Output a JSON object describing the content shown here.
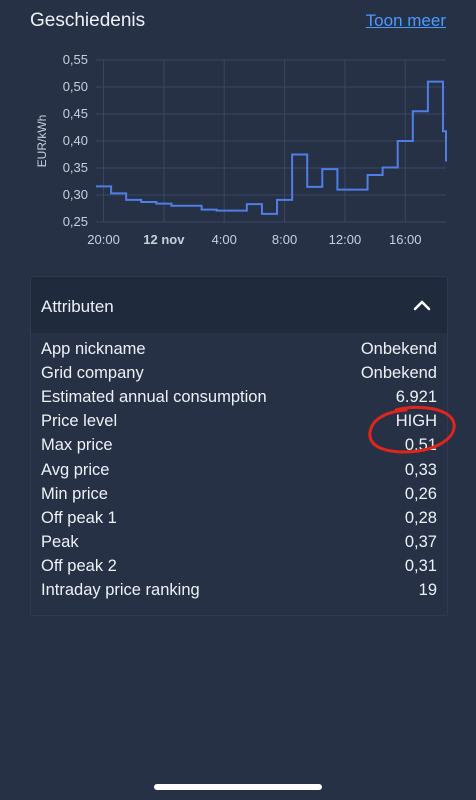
{
  "header": {
    "title": "Geschiedenis",
    "more_label": "Toon meer"
  },
  "colors": {
    "background": "#263146",
    "line": "#4f7ee6",
    "link": "#4a9bff",
    "annotation": "#e0251b"
  },
  "chart_data": {
    "type": "line",
    "ylabel": "EUR/kWh",
    "ylim": [
      0.25,
      0.55
    ],
    "yticks": [
      "0,55",
      "0,50",
      "0,45",
      "0,40",
      "0,35",
      "0,30",
      "0,25"
    ],
    "xticks": [
      "20:00",
      "12 nov",
      "4:00",
      "8:00",
      "12:00",
      "16:00"
    ],
    "xticks_hours": [
      20,
      24,
      28,
      32,
      36,
      40
    ],
    "xlim_hours": [
      19.5,
      42.7
    ],
    "series": [
      {
        "step": true,
        "points": [
          [
            19.5,
            0.316
          ],
          [
            20.5,
            0.303
          ],
          [
            21.5,
            0.291
          ],
          [
            22.5,
            0.287
          ],
          [
            23.5,
            0.284
          ],
          [
            24.5,
            0.28
          ],
          [
            25.5,
            0.28
          ],
          [
            26.5,
            0.273
          ],
          [
            27.5,
            0.271
          ],
          [
            28.5,
            0.271
          ],
          [
            29.5,
            0.283
          ],
          [
            30.5,
            0.265
          ],
          [
            31.5,
            0.291
          ],
          [
            32.5,
            0.375
          ],
          [
            33.5,
            0.315
          ],
          [
            34.5,
            0.348
          ],
          [
            35.5,
            0.31
          ],
          [
            36.5,
            0.31
          ],
          [
            37.5,
            0.337
          ],
          [
            38.5,
            0.351
          ],
          [
            39.5,
            0.4
          ],
          [
            40.5,
            0.455
          ],
          [
            41.5,
            0.51
          ],
          [
            42.5,
            0.418
          ],
          [
            42.7,
            0.362
          ]
        ]
      }
    ]
  },
  "attributes": {
    "title": "Attributen",
    "rows": [
      {
        "label": "App nickname",
        "value": "Onbekend"
      },
      {
        "label": "Grid company",
        "value": "Onbekend"
      },
      {
        "label": "Estimated annual consumption",
        "value": "6.921"
      },
      {
        "label": "Price level",
        "value": "HIGH"
      },
      {
        "label": "Max price",
        "value": "0,51"
      },
      {
        "label": "Avg price",
        "value": "0,33"
      },
      {
        "label": "Min price",
        "value": "0,26"
      },
      {
        "label": "Off peak 1",
        "value": "0,28"
      },
      {
        "label": "Peak",
        "value": "0,37"
      },
      {
        "label": "Off peak 2",
        "value": "0,31"
      },
      {
        "label": "Intraday price ranking",
        "value": "19"
      }
    ]
  }
}
